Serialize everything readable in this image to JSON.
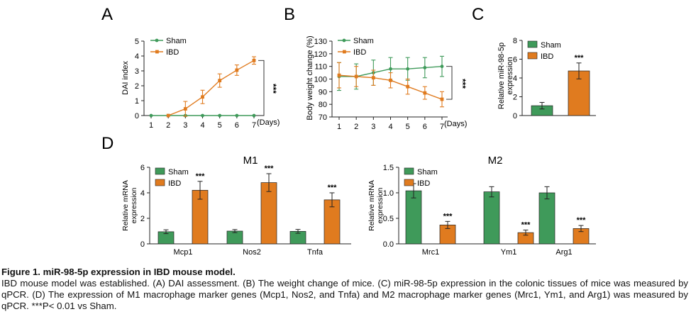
{
  "colors": {
    "sham": "#3f9a5a",
    "ibd": "#e07b1f",
    "axis": "#222222"
  },
  "panels": {
    "A": {
      "letter": "A",
      "xlabel": "(Days)",
      "ylabel": "DAI index",
      "sig": "***"
    },
    "B": {
      "letter": "B",
      "xlabel": "(Days)",
      "ylabel": "Body weight change (%)",
      "sig": "***"
    },
    "C": {
      "letter": "C",
      "ylabel_line1": "Relative miR-98-5p",
      "ylabel_line2": "expression",
      "sig": "***"
    },
    "D": {
      "letter": "D",
      "m1_title": "M1",
      "m2_title": "M2",
      "ylabel_line1": "Relative mRNA",
      "ylabel_line2": "expression"
    }
  },
  "legend": {
    "sham": "Sham",
    "ibd": "IBD"
  },
  "caption": {
    "title": "Figure 1. miR-98-5p expression in IBD mouse model.",
    "body": "IBD mouse model was established. (A) DAI assessment. (B) The weight change of mice. (C) miR-98-5p expression in the colonic tissues of mice was measured by qPCR. (D) The expression of M1 macrophage marker genes (Mcp1, Nos2, and Tnfa) and M2 macrophage marker genes (Mrc1, Ym1, and Arg1) was measured by qPCR. ***P< 0.01 vs Sham."
  },
  "chart_data": [
    {
      "id": "A",
      "type": "line",
      "ylabel": "DAI index",
      "xlabel": "(Days)",
      "x": [
        1,
        2,
        3,
        4,
        5,
        6,
        7
      ],
      "ylim": [
        0,
        5
      ],
      "yticks": [
        0,
        1,
        2,
        3,
        4,
        5
      ],
      "series": [
        {
          "name": "Sham",
          "values": [
            0,
            0,
            0,
            0,
            0,
            0,
            0
          ],
          "err": [
            0,
            0,
            0,
            0,
            0,
            0,
            0
          ]
        },
        {
          "name": "IBD",
          "values": [
            0,
            0,
            0.45,
            1.25,
            2.35,
            3.05,
            3.7
          ],
          "err": [
            0,
            0,
            0.5,
            0.45,
            0.45,
            0.35,
            0.25
          ]
        }
      ],
      "significance": "***"
    },
    {
      "id": "B",
      "type": "line",
      "ylabel": "Body weight change (%)",
      "xlabel": "(Days)",
      "x": [
        1,
        2,
        3,
        4,
        5,
        6,
        7
      ],
      "ylim": [
        70,
        130
      ],
      "yticks": [
        70,
        80,
        90,
        100,
        110,
        120,
        130
      ],
      "series": [
        {
          "name": "Sham",
          "values": [
            102,
            102,
            105,
            108,
            108,
            109,
            110
          ],
          "err": [
            11,
            10,
            10,
            9,
            9,
            8,
            8
          ]
        },
        {
          "name": "IBD",
          "values": [
            103,
            102,
            101,
            99,
            94,
            89,
            84
          ],
          "err": [
            10,
            8,
            6,
            6,
            6,
            5,
            6
          ]
        }
      ],
      "significance": "***"
    },
    {
      "id": "C",
      "type": "bar",
      "ylabel": "Relative miR-98-5p expression",
      "categories": [
        "Sham",
        "IBD"
      ],
      "ylim": [
        0,
        8
      ],
      "yticks": [
        0,
        2,
        4,
        6,
        8
      ],
      "values": [
        1.05,
        4.75
      ],
      "err": [
        0.35,
        0.85
      ],
      "sig": [
        "",
        "***"
      ]
    },
    {
      "id": "D-M1",
      "type": "bar",
      "title": "M1",
      "ylabel": "Relative mRNA expression",
      "categories": [
        "Mcp1",
        "Nos2",
        "Tnfa"
      ],
      "ylim": [
        0,
        6
      ],
      "yticks": [
        0,
        2,
        4,
        6
      ],
      "series": [
        {
          "name": "Sham",
          "values": [
            0.95,
            1.0,
            0.98
          ],
          "err": [
            0.15,
            0.12,
            0.15
          ]
        },
        {
          "name": "IBD",
          "values": [
            4.2,
            4.8,
            3.45
          ],
          "err": [
            0.7,
            0.7,
            0.55
          ],
          "sig": [
            "***",
            "***",
            "***"
          ]
        }
      ]
    },
    {
      "id": "D-M2",
      "type": "bar",
      "title": "M2",
      "ylabel": "Relative mRNA expression",
      "categories": [
        "Mrc1",
        "Ym1",
        "Arg1"
      ],
      "ylim": [
        0,
        1.5
      ],
      "yticks": [
        "0.0",
        "0.5",
        "1.0",
        "1.5"
      ],
      "series": [
        {
          "name": "Sham",
          "values": [
            1.04,
            1.02,
            1.0
          ],
          "err": [
            0.14,
            0.1,
            0.12
          ]
        },
        {
          "name": "IBD",
          "values": [
            0.37,
            0.22,
            0.3
          ],
          "err": [
            0.07,
            0.05,
            0.06
          ],
          "sig": [
            "***",
            "***",
            "***"
          ]
        }
      ]
    }
  ]
}
